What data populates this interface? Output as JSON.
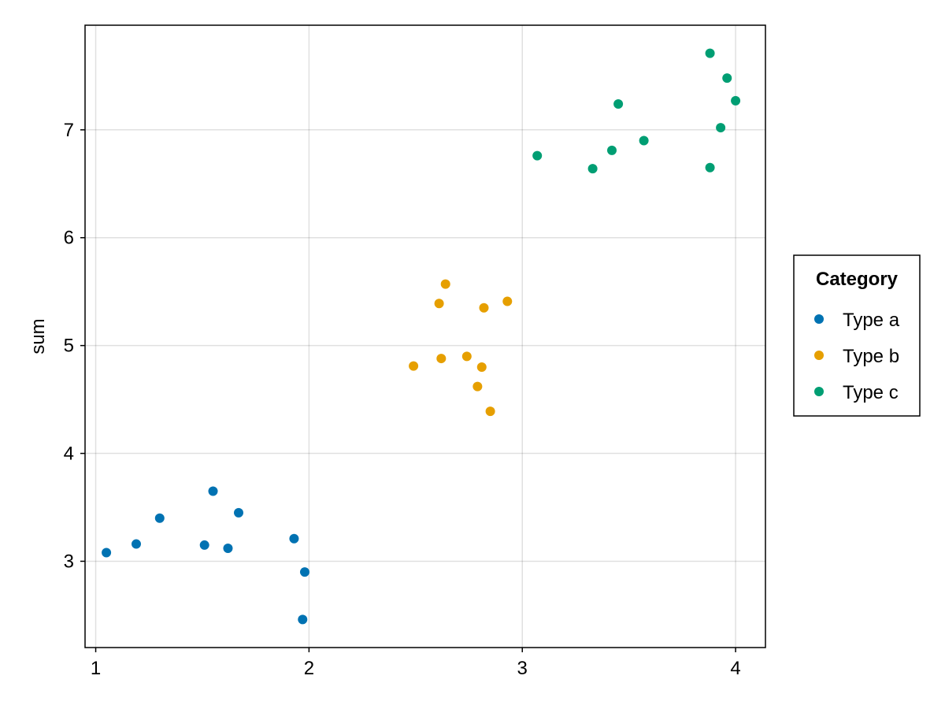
{
  "chart_data": {
    "type": "scatter",
    "title": "",
    "xlabel": "",
    "ylabel": "sum",
    "xlim": [
      0.95,
      4.14
    ],
    "ylim": [
      2.2,
      7.97
    ],
    "xticks": [
      1,
      2,
      3,
      4
    ],
    "yticks": [
      3,
      4,
      5,
      6,
      7
    ],
    "grid": true,
    "legend": {
      "title": "Category",
      "placement": "right"
    },
    "series": [
      {
        "name": "Type a",
        "color": "#0072B2",
        "points": [
          [
            1.05,
            3.08
          ],
          [
            1.19,
            3.16
          ],
          [
            1.3,
            3.4
          ],
          [
            1.51,
            3.15
          ],
          [
            1.55,
            3.65
          ],
          [
            1.62,
            3.12
          ],
          [
            1.67,
            3.45
          ],
          [
            1.93,
            3.21
          ],
          [
            1.98,
            2.9
          ],
          [
            1.97,
            2.46
          ]
        ]
      },
      {
        "name": "Type b",
        "color": "#E69F00",
        "points": [
          [
            2.49,
            4.81
          ],
          [
            2.61,
            5.39
          ],
          [
            2.62,
            4.88
          ],
          [
            2.64,
            5.57
          ],
          [
            2.74,
            4.9
          ],
          [
            2.79,
            4.62
          ],
          [
            2.81,
            4.8
          ],
          [
            2.82,
            5.35
          ],
          [
            2.85,
            4.39
          ],
          [
            2.93,
            5.41
          ]
        ]
      },
      {
        "name": "Type c",
        "color": "#009E73",
        "points": [
          [
            3.07,
            6.76
          ],
          [
            3.33,
            6.64
          ],
          [
            3.42,
            6.81
          ],
          [
            3.45,
            7.24
          ],
          [
            3.57,
            6.9
          ],
          [
            3.88,
            7.71
          ],
          [
            3.88,
            6.65
          ],
          [
            3.93,
            7.02
          ],
          [
            3.96,
            7.48
          ],
          [
            4.0,
            7.27
          ]
        ]
      }
    ]
  }
}
